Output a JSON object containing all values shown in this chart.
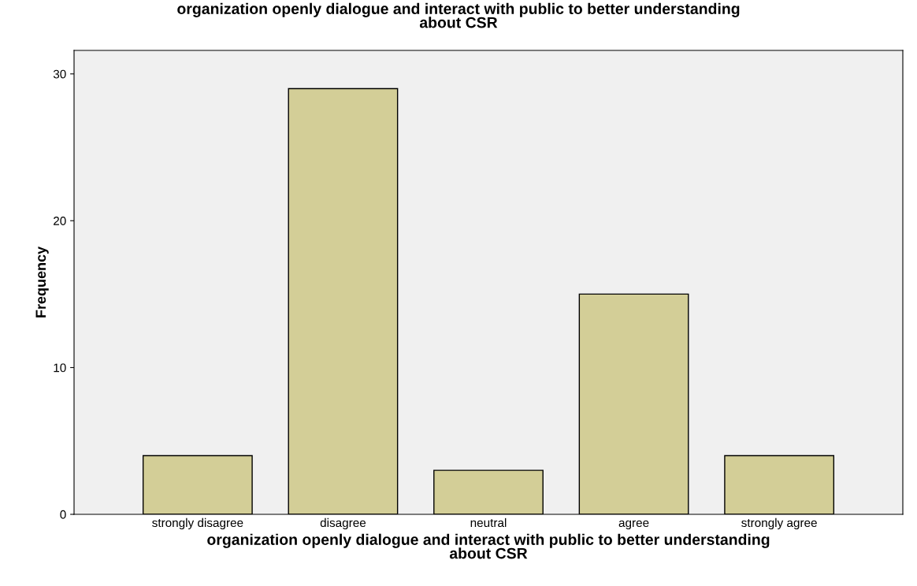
{
  "chart_data": {
    "type": "bar",
    "title": "organization openly dialogue and interact with public to better understanding\nabout CSR",
    "xlabel": "organization openly dialogue and interact with public to better understanding\nabout CSR",
    "ylabel": "Frequency",
    "categories": [
      "strongly disagree",
      "disagree",
      "neutral",
      "agree",
      "strongly agree"
    ],
    "values": [
      4,
      29,
      3,
      15,
      4
    ],
    "color": "#d3ce97",
    "ylim": [
      0,
      31.6
    ],
    "yticks": [
      0,
      10,
      20,
      30
    ],
    "grid": false
  }
}
